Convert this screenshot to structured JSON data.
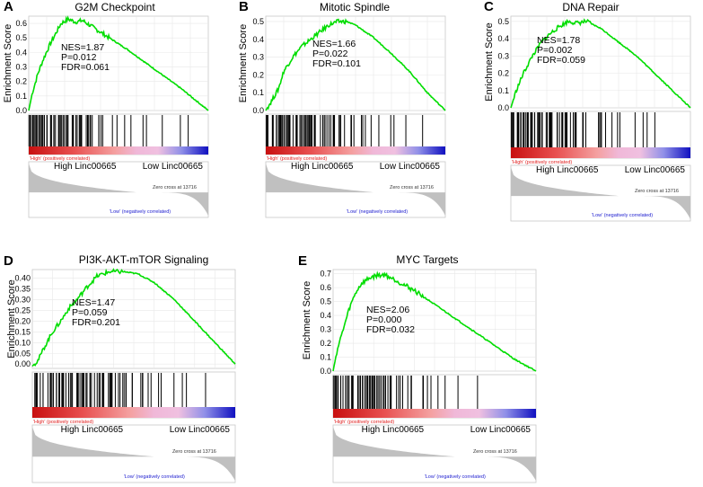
{
  "figure": {
    "colors": {
      "es_curve": "#00dd00",
      "hit": "#000000",
      "metric_fill": "#c0c0c0",
      "red": "#e02020",
      "blue": "#2020d0"
    }
  },
  "chart_data": [
    {
      "type": "line",
      "panel": "A",
      "title": "G2M Checkpoint",
      "ylabel": "Enrichment Score",
      "yticks": [
        "0.6",
        "0.5",
        "0.4",
        "0.3",
        "0.2",
        "0.1",
        "0.0"
      ],
      "ylim": [
        0,
        0.65
      ],
      "stats": {
        "nes": "NES=1.87",
        "p": "P=0.012",
        "fdr": "FDR=0.061"
      },
      "high_label": "High Linc00665",
      "low_label": "Low Linc00665",
      "pos_label": "'High' (positively correlated)",
      "neg_label": "'Low' (negatively correlated)",
      "zero_cross": "Zero cross at 13716",
      "es_curve": {
        "x": [
          0,
          0.02,
          0.05,
          0.08,
          0.12,
          0.15,
          0.18,
          0.22,
          0.26,
          0.3,
          0.35,
          0.45,
          0.55,
          0.65,
          0.75,
          0.85,
          0.95,
          1
        ],
        "y": [
          0,
          0.12,
          0.25,
          0.35,
          0.46,
          0.53,
          0.6,
          0.63,
          0.61,
          0.62,
          0.58,
          0.5,
          0.42,
          0.33,
          0.24,
          0.15,
          0.05,
          0
        ]
      },
      "hit_density": [
        10,
        9,
        9,
        8,
        7,
        6,
        5,
        3,
        2,
        2,
        1,
        1,
        1,
        1,
        1,
        0,
        1,
        1,
        0,
        0
      ]
    },
    {
      "type": "line",
      "panel": "B",
      "title": "Mitotic Spindle",
      "ylabel": "Enrichment Score",
      "yticks": [
        "0.5",
        "0.4",
        "0.3",
        "0.2",
        "0.1",
        "0.0"
      ],
      "ylim": [
        0,
        0.53
      ],
      "stats": {
        "nes": "NES=1.66",
        "p": "P=0.022",
        "fdr": "FDR=0.101"
      },
      "high_label": "High Linc00665",
      "low_label": "Low Linc00665",
      "pos_label": "'High' (positively correlated)",
      "neg_label": "'Low' (negatively correlated)",
      "zero_cross": "Zero cross at 13716",
      "es_curve": {
        "x": [
          0,
          0.03,
          0.07,
          0.1,
          0.15,
          0.2,
          0.25,
          0.3,
          0.35,
          0.4,
          0.45,
          0.5,
          0.6,
          0.7,
          0.8,
          0.9,
          1
        ],
        "y": [
          0,
          0.05,
          0.12,
          0.22,
          0.3,
          0.36,
          0.4,
          0.44,
          0.48,
          0.5,
          0.5,
          0.48,
          0.41,
          0.32,
          0.22,
          0.1,
          0
        ]
      },
      "hit_density": [
        8,
        9,
        9,
        8,
        8,
        7,
        6,
        5,
        4,
        3,
        2,
        2,
        1,
        1,
        1,
        1,
        0,
        1,
        0,
        0
      ]
    },
    {
      "type": "line",
      "panel": "C",
      "title": "DNA  Repair",
      "ylabel": "Enrichment Score",
      "yticks": [
        "0.5",
        "0.4",
        "0.3",
        "0.2",
        "0.1",
        "0.0"
      ],
      "ylim": [
        0,
        0.53
      ],
      "stats": {
        "nes": "NES=1.78",
        "p": "P=0.002",
        "fdr": "FDR=0.059"
      },
      "high_label": "High Linc00665",
      "low_label": "Low Linc00665",
      "pos_label": "'High' (positively correlated)",
      "neg_label": "'Low' (negatively correlated)",
      "zero_cross": "Zero cross at 13716",
      "es_curve": {
        "x": [
          0,
          0.03,
          0.07,
          0.12,
          0.17,
          0.22,
          0.27,
          0.32,
          0.37,
          0.42,
          0.5,
          0.6,
          0.7,
          0.8,
          0.9,
          1
        ],
        "y": [
          0,
          0.1,
          0.2,
          0.3,
          0.38,
          0.43,
          0.47,
          0.5,
          0.49,
          0.5,
          0.46,
          0.38,
          0.3,
          0.2,
          0.1,
          0
        ]
      },
      "hit_density": [
        9,
        9,
        8,
        8,
        7,
        7,
        6,
        5,
        4,
        3,
        2,
        2,
        1,
        1,
        1,
        1,
        1,
        0,
        0,
        0
      ]
    },
    {
      "type": "line",
      "panel": "D",
      "title": "PI3K-AKT-mTOR Signaling",
      "ylabel": "Enrichment Score",
      "yticks": [
        "0.40",
        "0.35",
        "0.30",
        "0.25",
        "0.20",
        "0.15",
        "0.10",
        "0.05",
        "0.00"
      ],
      "ylim": [
        -0.02,
        0.44
      ],
      "stats": {
        "nes": "NES=1.47",
        "p": "P=0.059",
        "fdr": "FDR=0.201"
      },
      "high_label": "High Linc00665",
      "low_label": "Low Linc00665",
      "pos_label": "'High' (positively correlated)",
      "neg_label": "'Low' (negatively correlated)",
      "zero_cross": "Zero cross at 13716",
      "es_curve": {
        "x": [
          0,
          0.03,
          0.06,
          0.1,
          0.14,
          0.18,
          0.22,
          0.27,
          0.32,
          0.38,
          0.45,
          0.52,
          0.6,
          0.7,
          0.8,
          0.9,
          1
        ],
        "y": [
          -0.01,
          0.02,
          0.08,
          0.15,
          0.2,
          0.26,
          0.3,
          0.36,
          0.41,
          0.43,
          0.43,
          0.42,
          0.38,
          0.3,
          0.2,
          0.1,
          0.0
        ]
      },
      "hit_density": [
        6,
        6,
        7,
        7,
        7,
        7,
        6,
        6,
        5,
        4,
        3,
        2,
        2,
        1,
        1,
        1,
        0,
        1,
        0,
        0
      ]
    },
    {
      "type": "line",
      "panel": "E",
      "title": "MYC  Targets",
      "ylabel": "Enrichment Score",
      "yticks": [
        "0.7",
        "0.6",
        "0.5",
        "0.4",
        "0.3",
        "0.2",
        "0.1",
        "0.0"
      ],
      "ylim": [
        0,
        0.73
      ],
      "stats": {
        "nes": "NES=2.06",
        "p": "P=0.000",
        "fdr": "FDR=0.032"
      },
      "high_label": "High Linc00665",
      "low_label": "Low Linc00665",
      "pos_label": "'High' (positively correlated)",
      "neg_label": "'Low' (negatively correlated)",
      "zero_cross": "Zero cross at 13716",
      "es_curve": {
        "x": [
          0,
          0.02,
          0.05,
          0.08,
          0.11,
          0.14,
          0.18,
          0.22,
          0.26,
          0.3,
          0.4,
          0.5,
          0.6,
          0.7,
          0.8,
          0.9,
          1
        ],
        "y": [
          0,
          0.15,
          0.3,
          0.45,
          0.56,
          0.63,
          0.67,
          0.69,
          0.69,
          0.66,
          0.58,
          0.48,
          0.38,
          0.28,
          0.18,
          0.08,
          0
        ]
      },
      "hit_density": [
        12,
        11,
        10,
        9,
        8,
        6,
        4,
        3,
        2,
        2,
        1,
        1,
        1,
        0,
        1,
        0,
        0,
        0,
        0,
        0
      ]
    }
  ]
}
